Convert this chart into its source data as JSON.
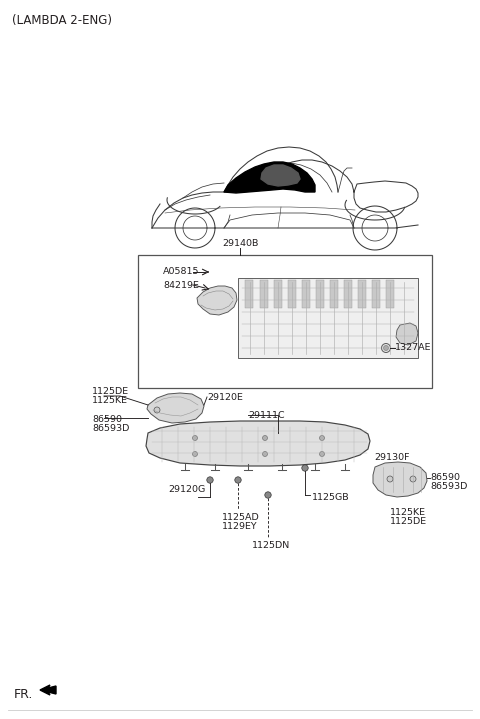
{
  "title": "(LAMBDA 2-ENG)",
  "bg_color": "#ffffff",
  "text_color": "#231f20",
  "line_color": "#231f20",
  "labels": {
    "top_ref": "29140B",
    "A05815": "A05815",
    "84219E": "84219E",
    "29111C": "29111C",
    "1327AE": "1327AE",
    "1125DE_top": "1125DE",
    "1125KE_top": "1125KE",
    "29120E": "29120E",
    "86590_top": "86590",
    "86593D_top": "86593D",
    "29120G": "29120G",
    "1125AD": "1125AD",
    "1129EY": "1129EY",
    "1125DN": "1125DN",
    "1125GB": "1125GB",
    "29130F": "29130F",
    "86590_bot": "86590",
    "86593D_bot": "86593D",
    "1125KE_bot": "1125KE",
    "1125DE_bot": "1125DE",
    "FR": "FR."
  },
  "font_size_title": 8.5,
  "font_size_label": 6.8,
  "font_size_fr": 9.0,
  "fig_w": 4.8,
  "fig_h": 7.19,
  "dpi": 100
}
